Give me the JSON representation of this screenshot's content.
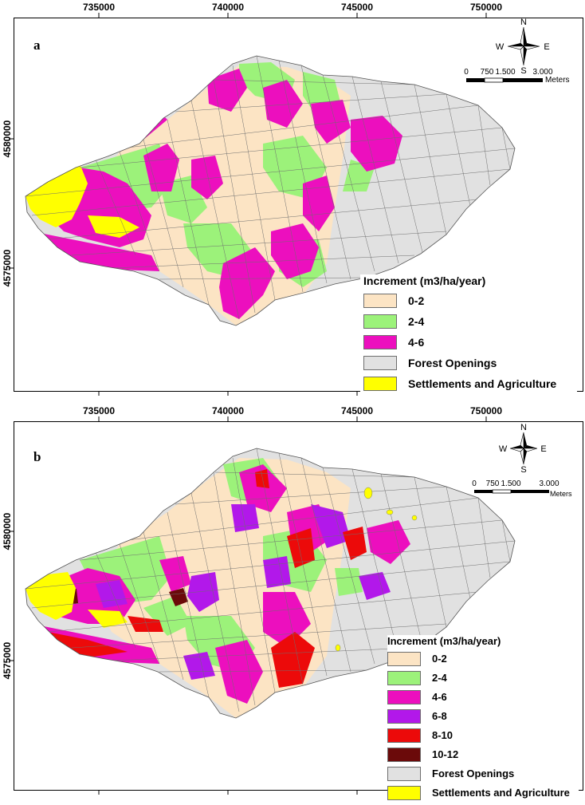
{
  "colors": {
    "c_0_2": "#fce4c4",
    "c_2_4": "#9cf27a",
    "c_4_6": "#ec0fbe",
    "c_6_8": "#b218ea",
    "c_8_10": "#ec0a0a",
    "c_10_12": "#6b0a0a",
    "forest_openings": "#e1e1e1",
    "settlements": "#ffff00"
  },
  "panel_a": {
    "letter": "a",
    "x_ticks": [
      "735000",
      "740000",
      "745000",
      "750000"
    ],
    "y_ticks": [
      "4580000",
      "4575000"
    ],
    "compass": {
      "n": "N",
      "s": "S",
      "e": "E",
      "w": "W"
    },
    "scale": {
      "labels": [
        "0",
        "750",
        "1.500",
        "3.000"
      ],
      "unit": "Meters"
    },
    "legend": {
      "title": "Increment (m3/ha/year)",
      "items": [
        "0-2",
        "2-4",
        "4-6",
        "Forest Openings",
        "Settlements and Agriculture"
      ]
    }
  },
  "panel_b": {
    "letter": "b",
    "x_ticks": [
      "735000",
      "740000",
      "745000",
      "750000"
    ],
    "y_ticks": [
      "4580000",
      "4575000"
    ],
    "compass": {
      "n": "N",
      "s": "S",
      "e": "E",
      "w": "W"
    },
    "scale": {
      "labels": [
        "0",
        "750",
        "1.500",
        "3.000"
      ],
      "unit": "Meters"
    },
    "legend": {
      "title": "Increment (m3/ha/year)",
      "items": [
        "0-2",
        "2-4",
        "4-6",
        "6-8",
        "8-10",
        "10-12",
        "Forest Openings",
        "Settlements and Agriculture"
      ]
    }
  }
}
